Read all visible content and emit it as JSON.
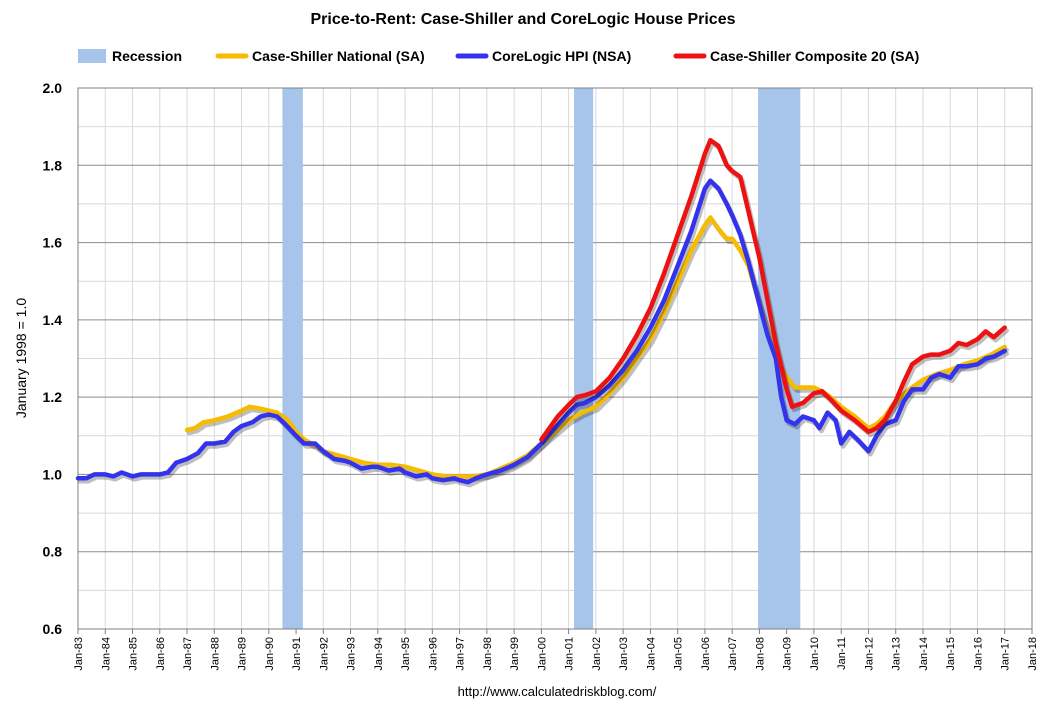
{
  "chart_data": {
    "type": "line",
    "title": "Price-to-Rent: Case-Shiller  and CoreLogic House Prices",
    "ylabel": "January 1998 = 1.0",
    "xlabel": "",
    "source": "http://www.calculatedriskblog.com/",
    "ylim": [
      0.6,
      2.0
    ],
    "yticks": [
      "0.6",
      "0.8",
      "1.0",
      "1.2",
      "1.4",
      "1.6",
      "1.8",
      "2.0"
    ],
    "xlim": [
      1983,
      2018
    ],
    "xticks": [
      "Jan-83",
      "Jan-84",
      "Jan-85",
      "Jan-86",
      "Jan-87",
      "Jan-88",
      "Jan-89",
      "Jan-90",
      "Jan-91",
      "Jan-92",
      "Jan-93",
      "Jan-94",
      "Jan-95",
      "Jan-96",
      "Jan-97",
      "Jan-98",
      "Jan-99",
      "Jan-00",
      "Jan-01",
      "Jan-02",
      "Jan-03",
      "Jan-04",
      "Jan-05",
      "Jan-06",
      "Jan-07",
      "Jan-08",
      "Jan-09",
      "Jan-10",
      "Jan-11",
      "Jan-12",
      "Jan-13",
      "Jan-14",
      "Jan-15",
      "Jan-16",
      "Jan-17",
      "Jan-18"
    ],
    "grid": true,
    "legend_position": "top",
    "recession_label": "Recession",
    "recession_color": "#a7c4ea",
    "recessions": [
      [
        1990.5,
        1991.25
      ],
      [
        2001.2,
        2001.9
      ],
      [
        2007.95,
        2009.5
      ]
    ],
    "series": [
      {
        "name": "Case-Shiller National (SA)",
        "color": "#f7bb00",
        "points": [
          [
            1987.0,
            1.115
          ],
          [
            1987.3,
            1.12
          ],
          [
            1987.6,
            1.135
          ],
          [
            1988.0,
            1.14
          ],
          [
            1988.5,
            1.15
          ],
          [
            1989.0,
            1.165
          ],
          [
            1989.3,
            1.175
          ],
          [
            1989.7,
            1.17
          ],
          [
            1990.0,
            1.165
          ],
          [
            1990.3,
            1.16
          ],
          [
            1990.7,
            1.14
          ],
          [
            1991.0,
            1.11
          ],
          [
            1991.3,
            1.09
          ],
          [
            1991.7,
            1.075
          ],
          [
            1992.0,
            1.06
          ],
          [
            1992.5,
            1.05
          ],
          [
            1993.0,
            1.04
          ],
          [
            1993.5,
            1.03
          ],
          [
            1994.0,
            1.025
          ],
          [
            1994.5,
            1.025
          ],
          [
            1995.0,
            1.02
          ],
          [
            1995.5,
            1.01
          ],
          [
            1996.0,
            1.0
          ],
          [
            1996.5,
            0.995
          ],
          [
            1997.0,
            0.995
          ],
          [
            1997.5,
            0.995
          ],
          [
            1998.0,
            1.0
          ],
          [
            1998.5,
            1.015
          ],
          [
            1999.0,
            1.03
          ],
          [
            1999.5,
            1.05
          ],
          [
            2000.0,
            1.08
          ],
          [
            2000.5,
            1.11
          ],
          [
            2001.0,
            1.14
          ],
          [
            2001.5,
            1.16
          ],
          [
            2002.0,
            1.175
          ],
          [
            2002.5,
            1.21
          ],
          [
            2003.0,
            1.25
          ],
          [
            2003.5,
            1.3
          ],
          [
            2004.0,
            1.35
          ],
          [
            2004.5,
            1.42
          ],
          [
            2005.0,
            1.5
          ],
          [
            2005.5,
            1.58
          ],
          [
            2006.0,
            1.645
          ],
          [
            2006.2,
            1.665
          ],
          [
            2006.5,
            1.635
          ],
          [
            2006.8,
            1.61
          ],
          [
            2007.0,
            1.61
          ],
          [
            2007.3,
            1.58
          ],
          [
            2007.6,
            1.54
          ],
          [
            2008.0,
            1.44
          ],
          [
            2008.3,
            1.37
          ],
          [
            2008.6,
            1.3
          ],
          [
            2009.0,
            1.25
          ],
          [
            2009.3,
            1.225
          ],
          [
            2009.6,
            1.225
          ],
          [
            2010.0,
            1.225
          ],
          [
            2010.3,
            1.215
          ],
          [
            2010.6,
            1.2
          ],
          [
            2011.0,
            1.175
          ],
          [
            2011.5,
            1.15
          ],
          [
            2012.0,
            1.12
          ],
          [
            2012.3,
            1.13
          ],
          [
            2012.6,
            1.15
          ],
          [
            2013.0,
            1.19
          ],
          [
            2013.5,
            1.22
          ],
          [
            2014.0,
            1.245
          ],
          [
            2014.5,
            1.26
          ],
          [
            2015.0,
            1.27
          ],
          [
            2015.5,
            1.285
          ],
          [
            2016.0,
            1.295
          ],
          [
            2016.5,
            1.31
          ],
          [
            2017.0,
            1.33
          ]
        ]
      },
      {
        "name": "CoreLogic HPI (NSA)",
        "color": "#3333ee",
        "points": [
          [
            1983.0,
            0.99
          ],
          [
            1983.3,
            0.99
          ],
          [
            1983.6,
            1.0
          ],
          [
            1984.0,
            1.0
          ],
          [
            1984.3,
            0.995
          ],
          [
            1984.6,
            1.005
          ],
          [
            1985.0,
            0.995
          ],
          [
            1985.3,
            1.0
          ],
          [
            1985.6,
            1.0
          ],
          [
            1986.0,
            1.0
          ],
          [
            1986.3,
            1.005
          ],
          [
            1986.6,
            1.03
          ],
          [
            1987.0,
            1.04
          ],
          [
            1987.4,
            1.055
          ],
          [
            1987.7,
            1.08
          ],
          [
            1988.0,
            1.08
          ],
          [
            1988.4,
            1.085
          ],
          [
            1988.7,
            1.11
          ],
          [
            1989.0,
            1.125
          ],
          [
            1989.4,
            1.135
          ],
          [
            1989.7,
            1.15
          ],
          [
            1990.0,
            1.155
          ],
          [
            1990.3,
            1.15
          ],
          [
            1990.6,
            1.13
          ],
          [
            1991.0,
            1.1
          ],
          [
            1991.3,
            1.08
          ],
          [
            1991.7,
            1.08
          ],
          [
            1992.0,
            1.06
          ],
          [
            1992.4,
            1.04
          ],
          [
            1992.8,
            1.035
          ],
          [
            1993.0,
            1.03
          ],
          [
            1993.4,
            1.015
          ],
          [
            1993.8,
            1.02
          ],
          [
            1994.0,
            1.02
          ],
          [
            1994.4,
            1.01
          ],
          [
            1994.8,
            1.015
          ],
          [
            1995.0,
            1.005
          ],
          [
            1995.4,
            0.995
          ],
          [
            1995.8,
            1.0
          ],
          [
            1996.0,
            0.99
          ],
          [
            1996.4,
            0.985
          ],
          [
            1996.8,
            0.99
          ],
          [
            1997.0,
            0.985
          ],
          [
            1997.3,
            0.98
          ],
          [
            1997.6,
            0.99
          ],
          [
            1998.0,
            1.0
          ],
          [
            1998.5,
            1.01
          ],
          [
            1999.0,
            1.025
          ],
          [
            1999.5,
            1.045
          ],
          [
            2000.0,
            1.08
          ],
          [
            2000.5,
            1.12
          ],
          [
            2001.0,
            1.16
          ],
          [
            2001.3,
            1.18
          ],
          [
            2001.6,
            1.185
          ],
          [
            2002.0,
            1.2
          ],
          [
            2002.5,
            1.23
          ],
          [
            2003.0,
            1.27
          ],
          [
            2003.5,
            1.32
          ],
          [
            2004.0,
            1.38
          ],
          [
            2004.5,
            1.45
          ],
          [
            2005.0,
            1.54
          ],
          [
            2005.5,
            1.63
          ],
          [
            2006.0,
            1.74
          ],
          [
            2006.2,
            1.76
          ],
          [
            2006.5,
            1.74
          ],
          [
            2006.8,
            1.7
          ],
          [
            2007.0,
            1.67
          ],
          [
            2007.3,
            1.62
          ],
          [
            2007.6,
            1.55
          ],
          [
            2008.0,
            1.44
          ],
          [
            2008.3,
            1.36
          ],
          [
            2008.6,
            1.3
          ],
          [
            2008.8,
            1.2
          ],
          [
            2009.0,
            1.14
          ],
          [
            2009.3,
            1.13
          ],
          [
            2009.6,
            1.15
          ],
          [
            2010.0,
            1.14
          ],
          [
            2010.2,
            1.12
          ],
          [
            2010.5,
            1.16
          ],
          [
            2010.8,
            1.14
          ],
          [
            2011.0,
            1.08
          ],
          [
            2011.3,
            1.11
          ],
          [
            2011.6,
            1.09
          ],
          [
            2012.0,
            1.06
          ],
          [
            2012.3,
            1.1
          ],
          [
            2012.6,
            1.13
          ],
          [
            2013.0,
            1.14
          ],
          [
            2013.3,
            1.19
          ],
          [
            2013.6,
            1.22
          ],
          [
            2014.0,
            1.22
          ],
          [
            2014.3,
            1.25
          ],
          [
            2014.6,
            1.26
          ],
          [
            2015.0,
            1.25
          ],
          [
            2015.3,
            1.28
          ],
          [
            2015.6,
            1.28
          ],
          [
            2016.0,
            1.285
          ],
          [
            2016.3,
            1.3
          ],
          [
            2016.6,
            1.305
          ],
          [
            2017.0,
            1.32
          ]
        ]
      },
      {
        "name": "Case-Shiller Composite 20 (SA)",
        "color": "#ee1111",
        "points": [
          [
            2000.0,
            1.09
          ],
          [
            2000.3,
            1.12
          ],
          [
            2000.6,
            1.15
          ],
          [
            2001.0,
            1.18
          ],
          [
            2001.3,
            1.2
          ],
          [
            2001.6,
            1.205
          ],
          [
            2002.0,
            1.215
          ],
          [
            2002.5,
            1.25
          ],
          [
            2003.0,
            1.3
          ],
          [
            2003.5,
            1.36
          ],
          [
            2004.0,
            1.43
          ],
          [
            2004.5,
            1.52
          ],
          [
            2005.0,
            1.62
          ],
          [
            2005.5,
            1.72
          ],
          [
            2006.0,
            1.83
          ],
          [
            2006.2,
            1.865
          ],
          [
            2006.5,
            1.85
          ],
          [
            2006.8,
            1.8
          ],
          [
            2007.0,
            1.785
          ],
          [
            2007.3,
            1.77
          ],
          [
            2007.6,
            1.68
          ],
          [
            2008.0,
            1.56
          ],
          [
            2008.3,
            1.45
          ],
          [
            2008.6,
            1.34
          ],
          [
            2009.0,
            1.22
          ],
          [
            2009.2,
            1.175
          ],
          [
            2009.6,
            1.185
          ],
          [
            2010.0,
            1.21
          ],
          [
            2010.3,
            1.215
          ],
          [
            2010.6,
            1.195
          ],
          [
            2011.0,
            1.165
          ],
          [
            2011.5,
            1.14
          ],
          [
            2012.0,
            1.11
          ],
          [
            2012.3,
            1.12
          ],
          [
            2012.6,
            1.14
          ],
          [
            2013.0,
            1.19
          ],
          [
            2013.3,
            1.24
          ],
          [
            2013.6,
            1.285
          ],
          [
            2014.0,
            1.305
          ],
          [
            2014.3,
            1.31
          ],
          [
            2014.6,
            1.31
          ],
          [
            2015.0,
            1.32
          ],
          [
            2015.3,
            1.34
          ],
          [
            2015.6,
            1.335
          ],
          [
            2016.0,
            1.35
          ],
          [
            2016.3,
            1.37
          ],
          [
            2016.6,
            1.355
          ],
          [
            2017.0,
            1.38
          ]
        ]
      }
    ]
  }
}
